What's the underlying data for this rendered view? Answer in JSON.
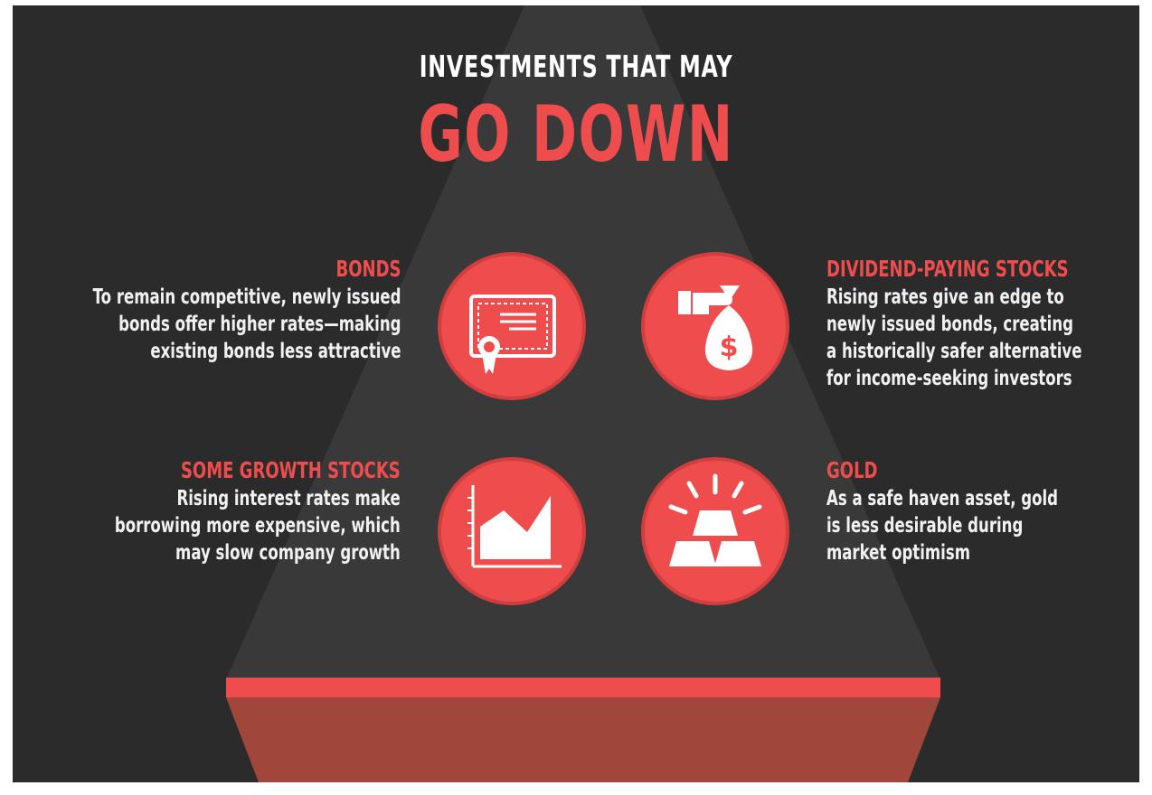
{
  "title": {
    "line1": "INVESTMENTS THAT MAY",
    "line2": "GO DOWN"
  },
  "items": [
    {
      "heading": "BONDS",
      "body": [
        "To remain competitive, newly issued",
        "bonds offer higher rates—making",
        "existing bonds less attractive"
      ],
      "icon": "certificate-icon"
    },
    {
      "heading": "DIVIDEND-PAYING STOCKS",
      "body": [
        "Rising rates give an edge to",
        "newly issued bonds, creating",
        "a historically safer alternative",
        "for income-seeking investors"
      ],
      "icon": "money-bag-hand-icon",
      "icon_glyph": "$"
    },
    {
      "heading": "SOME GROWTH STOCKS",
      "body": [
        "Rising interest rates make",
        "borrowing more expensive, which",
        "may slow company growth"
      ],
      "icon": "area-chart-icon"
    },
    {
      "heading": "GOLD",
      "body": [
        "As a safe haven asset, gold",
        "is less desirable during",
        "market optimism"
      ],
      "icon": "gold-bars-icon"
    }
  ],
  "colors": {
    "background": "#2c2b2c",
    "accent": "#ef4d4d",
    "pyramid": "#3a393a",
    "base_top": "#ef4d4d",
    "base_front": "#a0463a",
    "text": "#f1f1f1"
  }
}
